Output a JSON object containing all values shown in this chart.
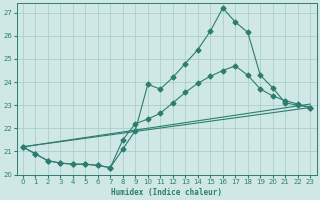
{
  "xlabel": "Humidex (Indice chaleur)",
  "xlim": [
    -0.5,
    23.5
  ],
  "ylim": [
    20,
    27.4
  ],
  "yticks": [
    20,
    21,
    22,
    23,
    24,
    25,
    26,
    27
  ],
  "xticks": [
    0,
    1,
    2,
    3,
    4,
    5,
    6,
    7,
    8,
    9,
    10,
    11,
    12,
    13,
    14,
    15,
    16,
    17,
    18,
    19,
    20,
    21,
    22,
    23
  ],
  "bg_color": "#cfe8e6",
  "grid_color": "#aacfcc",
  "line_color": "#2d7d6e",
  "series1_x": [
    0,
    1,
    2,
    3,
    4,
    5,
    6,
    7,
    8,
    9,
    10,
    11,
    12,
    13,
    14,
    15,
    16,
    17,
    18,
    19,
    20,
    21,
    22,
    23
  ],
  "series1_y": [
    21.2,
    20.9,
    20.6,
    20.5,
    20.45,
    20.45,
    20.4,
    20.3,
    21.1,
    21.9,
    23.9,
    23.7,
    24.2,
    24.8,
    25.4,
    26.2,
    27.2,
    26.6,
    26.15,
    24.3,
    23.75,
    23.1,
    23.0,
    22.9
  ],
  "series2_x": [
    0,
    1,
    2,
    3,
    4,
    5,
    6,
    7,
    8,
    9,
    10,
    11,
    12,
    13,
    14,
    15,
    16,
    17,
    18,
    19,
    20,
    21,
    22,
    23
  ],
  "series2_y": [
    21.2,
    20.9,
    20.6,
    20.5,
    20.45,
    20.45,
    20.4,
    20.3,
    21.5,
    22.2,
    22.4,
    22.65,
    23.1,
    23.55,
    23.95,
    24.25,
    24.5,
    24.7,
    24.3,
    23.7,
    23.4,
    23.2,
    23.05,
    22.9
  ],
  "line1_x": [
    0,
    23
  ],
  "line1_y": [
    21.2,
    23.05
  ],
  "line2_x": [
    0,
    23
  ],
  "line2_y": [
    21.2,
    22.9
  ]
}
